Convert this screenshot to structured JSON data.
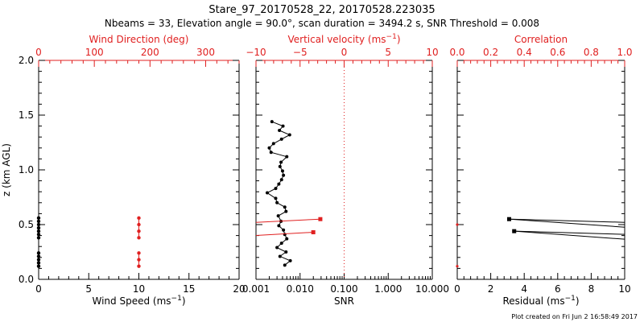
{
  "header": {
    "title": "Stare_97_20170528_22, 20170528.223035",
    "subtitle": "Nbeams = 33, Elevation angle = 90.0°, scan duration = 3494.2 s, SNR Threshold = 0.008"
  },
  "footer_note": "Plot created on Fri Jun  2 16:58:49 2017",
  "colors": {
    "primary": "#000000",
    "secondary": "#e02020"
  },
  "chart_data": [
    {
      "type": "scatter",
      "panel": "wind",
      "ylabel": "z (km AGL)",
      "ylim": [
        0,
        2.0
      ],
      "yticks": [
        "0.0",
        "0.5",
        "1.0",
        "1.5",
        "2.0"
      ],
      "xlabel": "Wind Speed (ms",
      "xlabel_sup": "−1",
      "xlabel_end": ")",
      "xlim": [
        0,
        20
      ],
      "xticks": [
        "0",
        "5",
        "10",
        "15",
        "20"
      ],
      "top_title": "Wind Direction (deg)",
      "top_lim": [
        0,
        360
      ],
      "top_ticks": [
        "0",
        "100",
        "200",
        "300"
      ],
      "series": [
        {
          "name": "Wind Speed",
          "color": "#000000",
          "x": [
            0,
            0,
            0,
            0,
            0,
            0,
            0,
            0,
            0,
            0,
            0,
            0
          ],
          "y": [
            0.12,
            0.15,
            0.18,
            0.21,
            0.24,
            0.38,
            0.41,
            0.44,
            0.47,
            0.5,
            0.53,
            0.56
          ]
        },
        {
          "name": "Wind Direction",
          "color": "#e02020",
          "x": [
            180,
            180,
            180,
            180,
            180,
            180,
            180
          ],
          "y": [
            0.12,
            0.18,
            0.24,
            0.38,
            0.44,
            0.5,
            0.56
          ]
        }
      ]
    },
    {
      "type": "line",
      "panel": "snr",
      "ylim": [
        0,
        2.0
      ],
      "xlabel": "SNR",
      "xscale": "log",
      "xlim": [
        0.001,
        10
      ],
      "xticks": [
        "0.001",
        "0.010",
        "0.100",
        "1.000",
        "10.000"
      ],
      "top_title": "Vertical velocity (ms",
      "top_title_sup": "−1",
      "top_title_end": ")",
      "top_lim": [
        -10,
        10
      ],
      "top_ticks": [
        "−10",
        "−5",
        "0",
        "5",
        "10"
      ],
      "reference_line": {
        "axis": "vertical velocity",
        "value": 0,
        "style": "dotted"
      },
      "series": [
        {
          "name": "SNR",
          "color": "#000000",
          "x": [
            0.0045,
            0.006,
            0.0035,
            0.0048,
            0.003,
            0.0038,
            0.005,
            0.0045,
            0.0042,
            0.0033,
            0.0037,
            0.0032,
            0.0048,
            0.0045,
            0.003,
            0.0028,
            0.0018,
            0.0028,
            0.0033,
            0.0038,
            0.0042,
            0.004,
            0.0035,
            0.0037,
            0.005,
            0.0022,
            0.002,
            0.0025,
            0.0038,
            0.0058,
            0.0034,
            0.0041,
            0.0023
          ],
          "y": [
            0.13,
            0.17,
            0.21,
            0.25,
            0.29,
            0.33,
            0.37,
            0.41,
            0.45,
            0.49,
            0.53,
            0.58,
            0.62,
            0.66,
            0.7,
            0.74,
            0.79,
            0.83,
            0.87,
            0.91,
            0.95,
            0.99,
            1.03,
            1.07,
            1.12,
            1.16,
            1.2,
            1.24,
            1.28,
            1.32,
            1.36,
            1.4,
            1.44
          ]
        },
        {
          "name": "Vertical velocity",
          "color": "#e02020",
          "x": [
            -2.7,
            -3.5
          ],
          "y": [
            0.55,
            0.43
          ]
        }
      ]
    },
    {
      "type": "scatter",
      "panel": "residual",
      "ylim": [
        0,
        2.0
      ],
      "xlabel": "Residual (ms",
      "xlabel_sup": "−1",
      "xlabel_end": ")",
      "xlim": [
        0,
        10
      ],
      "xticks": [
        "0",
        "2",
        "4",
        "6",
        "8",
        "10"
      ],
      "top_title": "Correlation",
      "top_lim": [
        0,
        1.0
      ],
      "top_ticks": [
        "0.0",
        "0.2",
        "0.4",
        "0.6",
        "0.8",
        "1.0"
      ],
      "series": [
        {
          "name": "Residual",
          "color": "#000000",
          "x": [
            3.1,
            3.4
          ],
          "y": [
            0.55,
            0.44
          ]
        },
        {
          "name": "Correlation",
          "color": "#e02020",
          "x": [
            0.0,
            0.0
          ],
          "y": [
            0.5,
            0.12
          ]
        }
      ]
    }
  ]
}
